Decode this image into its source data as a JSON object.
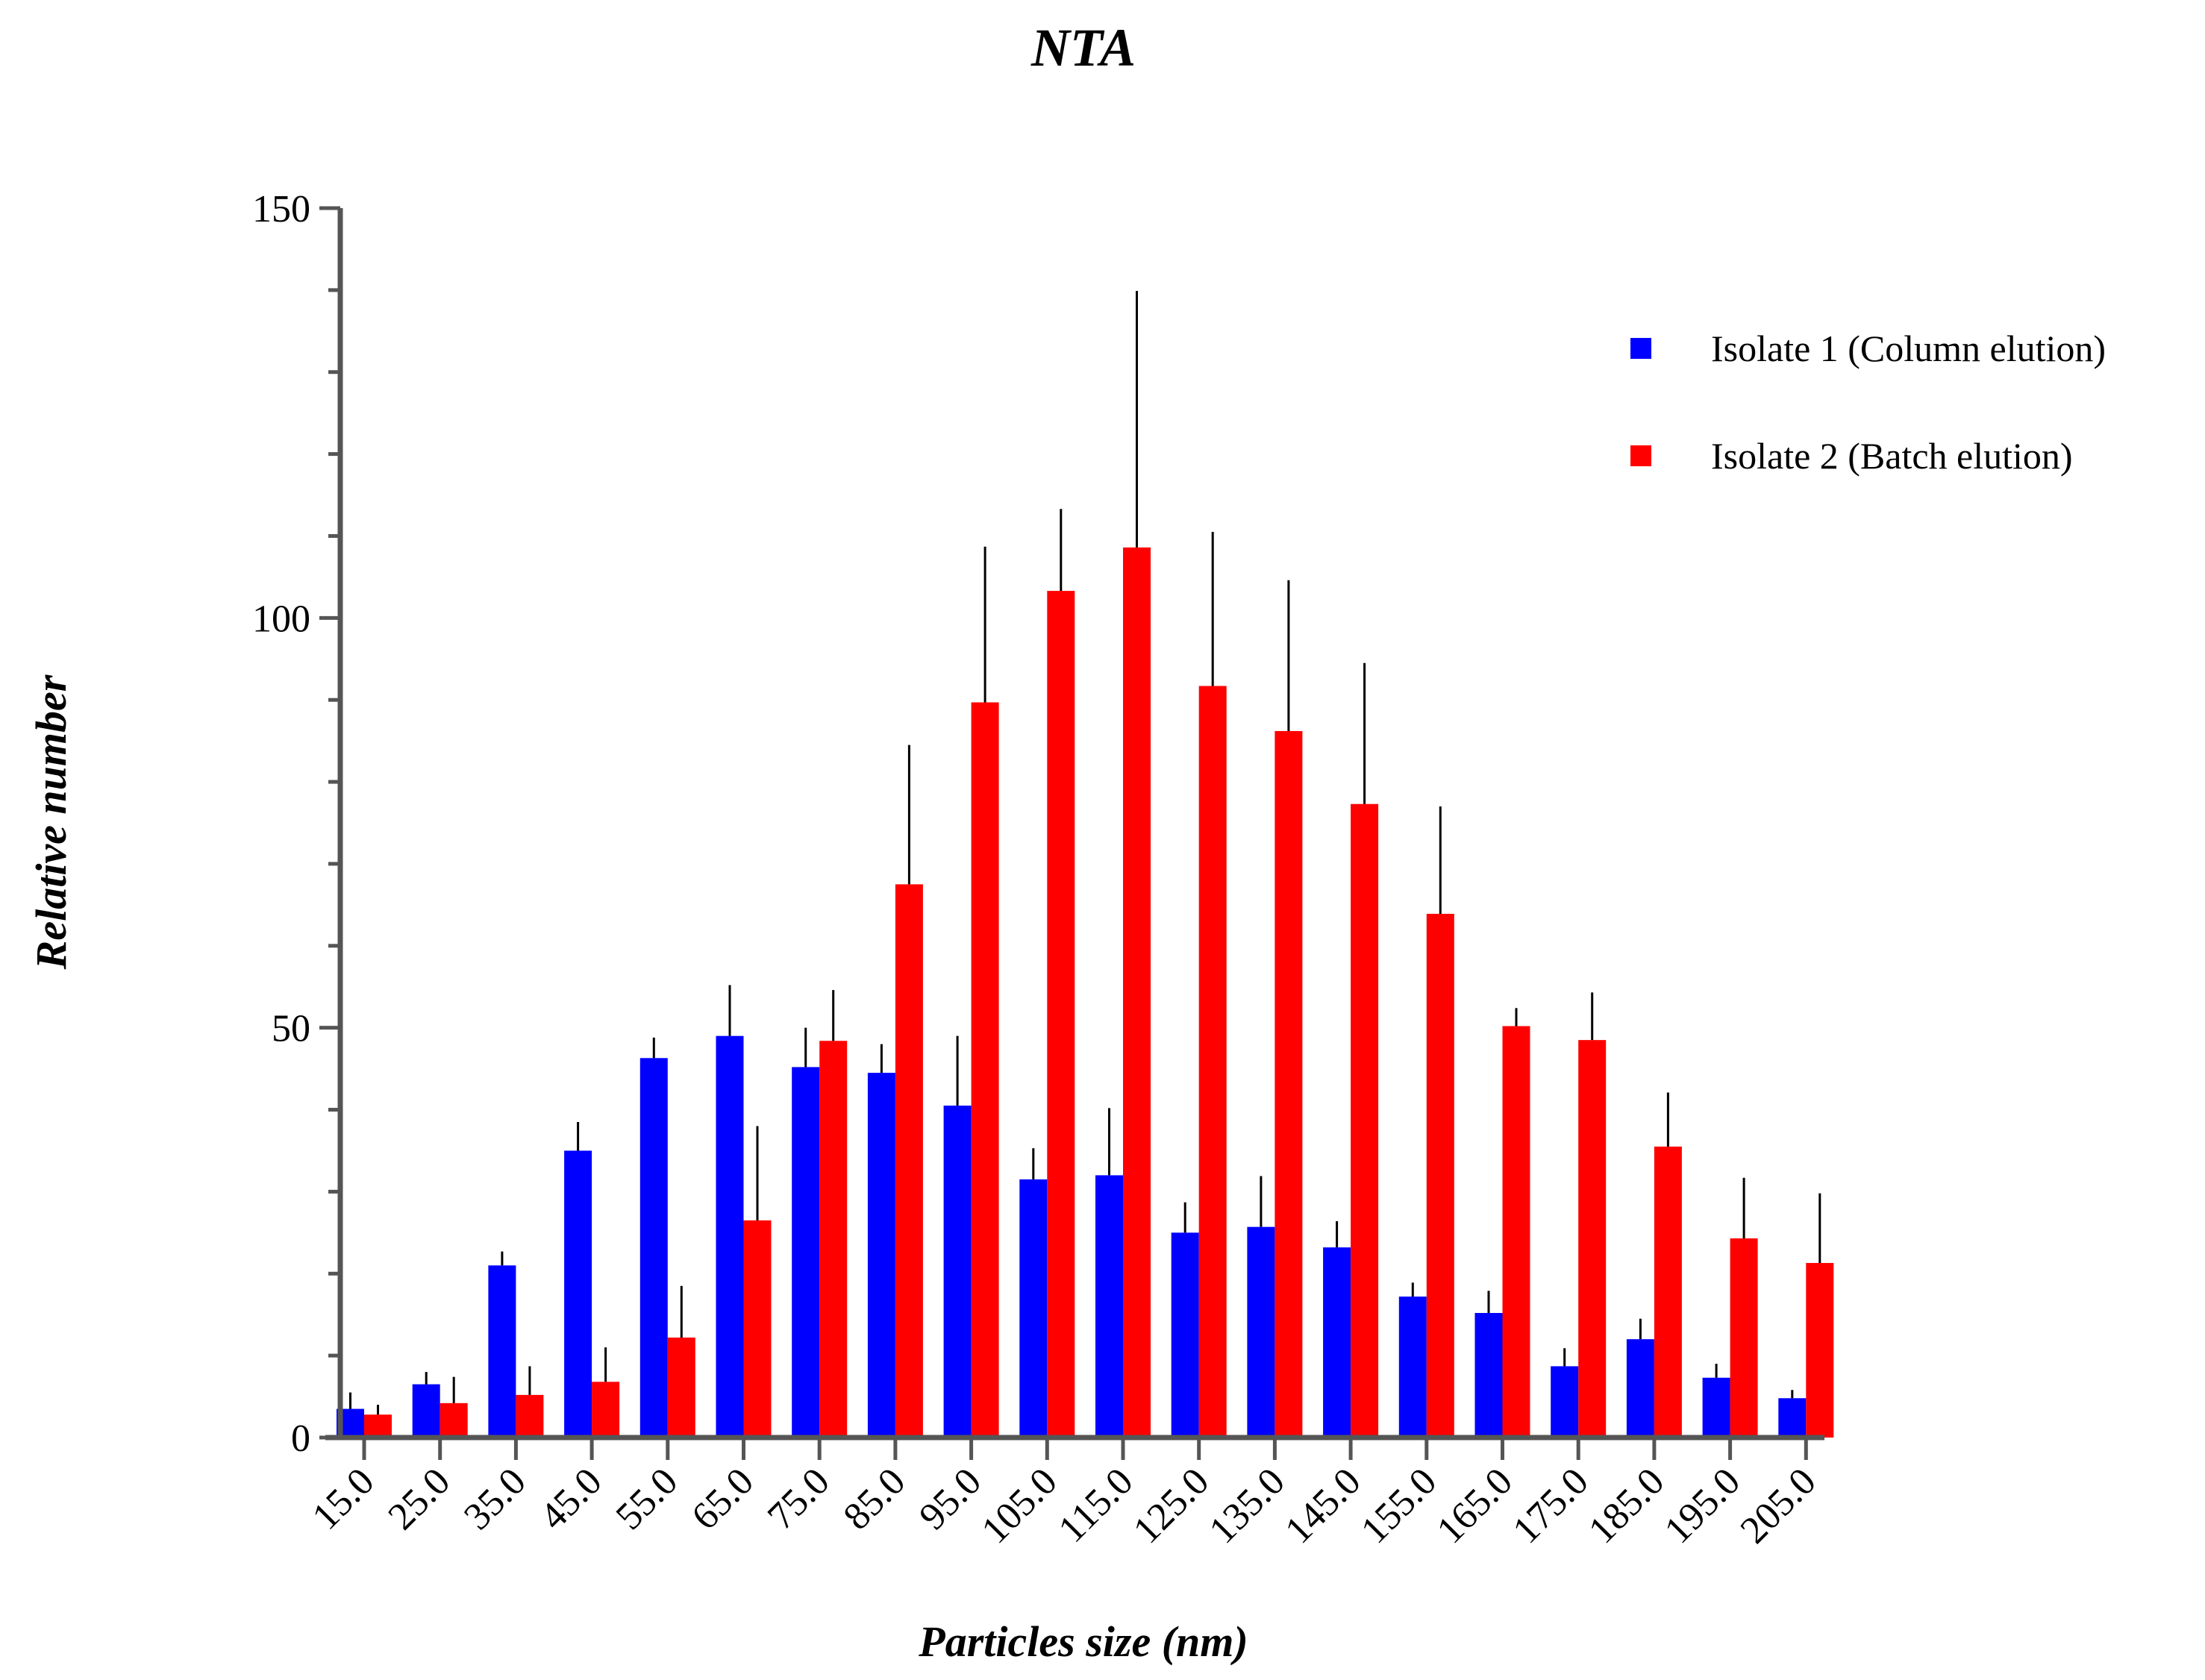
{
  "chart_data": {
    "type": "bar",
    "title": "NTA",
    "xlabel": "Particles size (nm)",
    "ylabel": "Relative number",
    "ylim": [
      0,
      150
    ],
    "yticks": [
      0,
      50,
      100,
      150
    ],
    "ytick_labels": [
      "0",
      "50",
      "100",
      "150"
    ],
    "grid": false,
    "legend_position": "top-right",
    "categories": [
      "15.0",
      "25.0",
      "35.0",
      "45.0",
      "55.0",
      "65.0",
      "75.0",
      "85.0",
      "95.0",
      "105.0",
      "115.0",
      "125.0",
      "135.0",
      "145.0",
      "155.0",
      "165.0",
      "175.0",
      "185.0",
      "195.0",
      "205.0"
    ],
    "series": [
      {
        "name": "Isolate 1 (Column elution)",
        "color": "#0000ff",
        "values": [
          3.5,
          6.5,
          21,
          35,
          46.3,
          49,
          45.2,
          44.5,
          40.5,
          31.5,
          32,
          25,
          25.7,
          23.2,
          17.2,
          15.2,
          8.7,
          12,
          7.3,
          4.8
        ],
        "errors": [
          2,
          1.5,
          1.7,
          3.5,
          2.5,
          6.2,
          4.8,
          3.5,
          8.5,
          3.8,
          8.2,
          3.7,
          6.2,
          3.2,
          1.7,
          2.7,
          2.2,
          2.5,
          1.7,
          1
        ]
      },
      {
        "name": "Isolate 2 (Batch elution)",
        "color": "#ff0000",
        "values": [
          2.8,
          4.2,
          5.2,
          6.8,
          12.2,
          26.5,
          48.4,
          67.5,
          89.7,
          103.3,
          108.6,
          91.7,
          86.2,
          77.3,
          63.9,
          50.2,
          48.5,
          35.5,
          24.3,
          21.3
        ],
        "errors": [
          1.2,
          3.2,
          3.5,
          4.2,
          6.3,
          11.5,
          6.2,
          17,
          19,
          10,
          31.3,
          18.8,
          18.4,
          17.2,
          13.1,
          2.2,
          5.8,
          6.6,
          7.4,
          8.5
        ]
      }
    ]
  }
}
